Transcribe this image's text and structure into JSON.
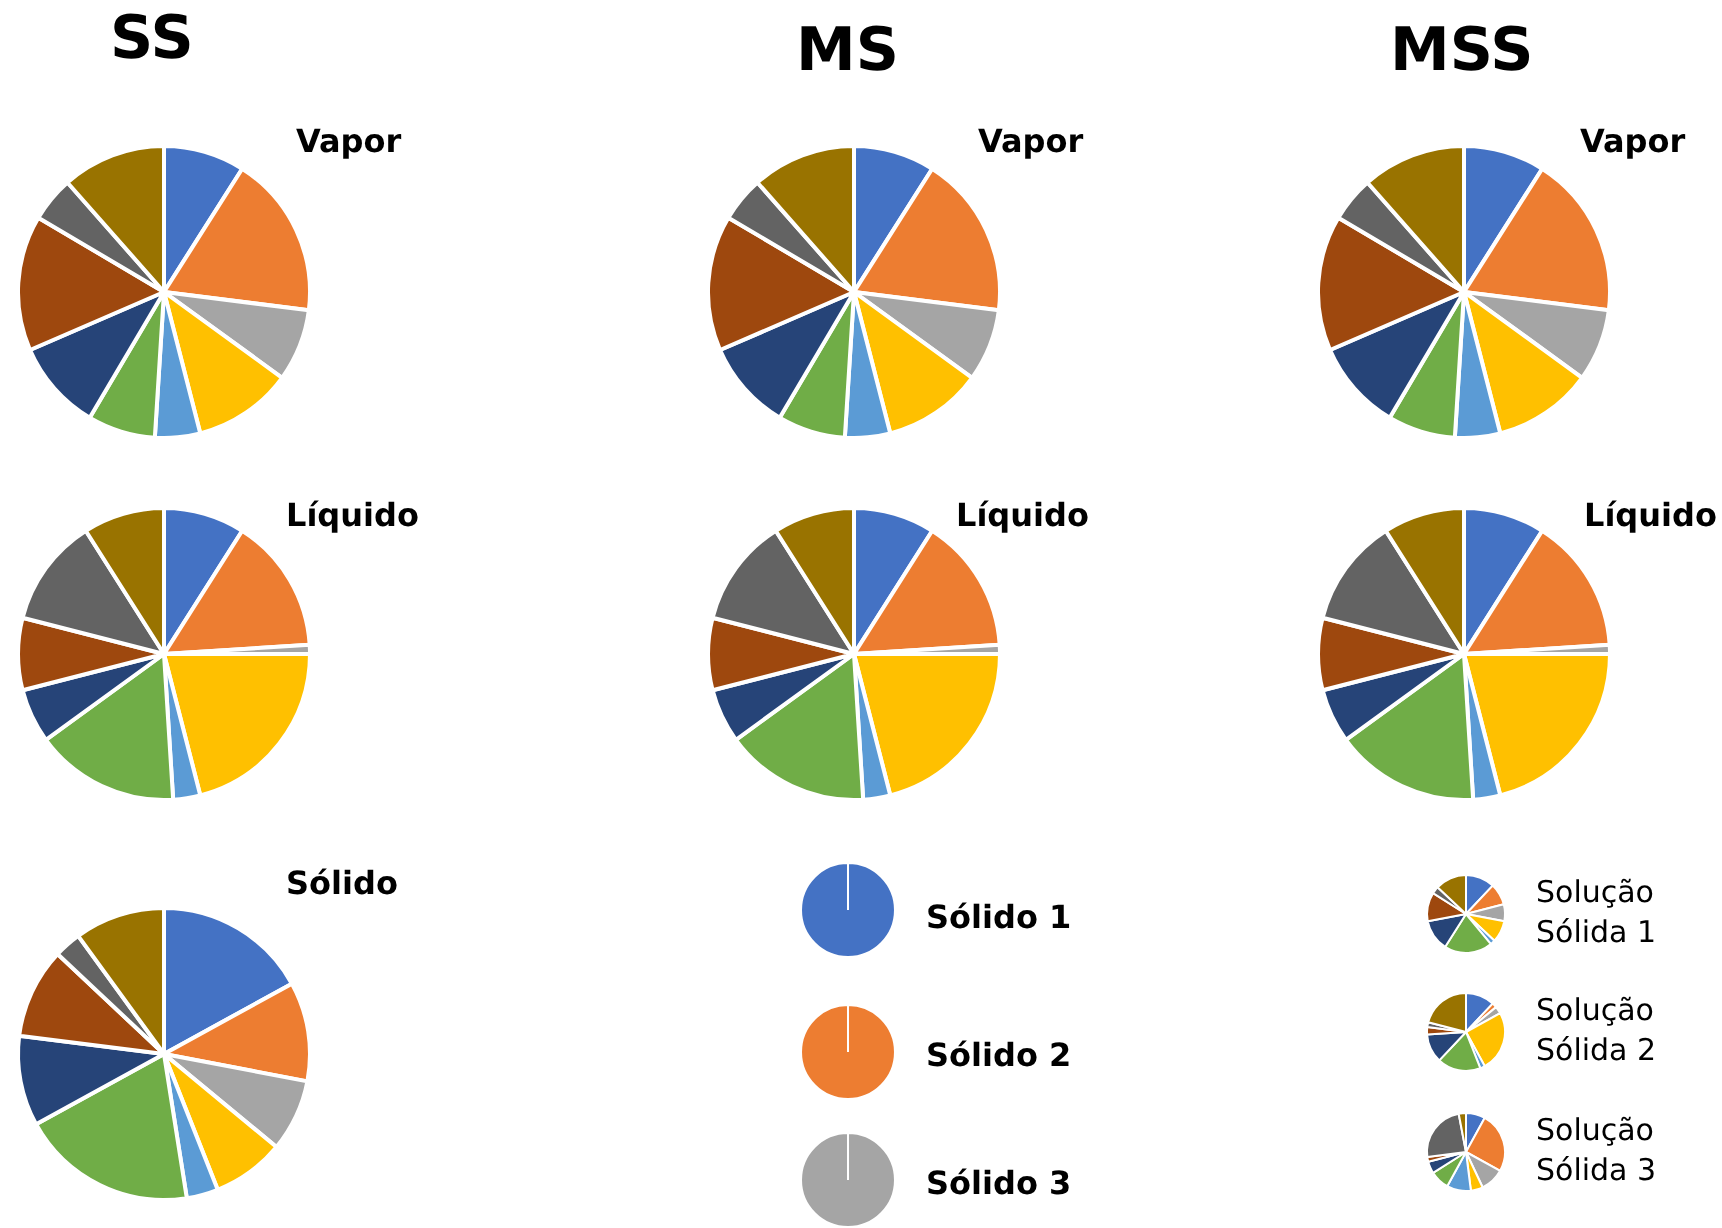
{
  "chart_data": [
    {
      "type": "pie",
      "title": "SS",
      "subtitle": "Vapor",
      "categories": [
        null,
        null,
        null,
        null,
        null,
        null,
        null,
        null,
        null,
        null
      ],
      "values": [
        9,
        18,
        8,
        11,
        5,
        7.5,
        10,
        15,
        5,
        11.5
      ],
      "colors": [
        "#4472c4",
        "#ed7d31",
        "#a5a5a5",
        "#ffc000",
        "#5b9bd5",
        "#70ad47",
        "#264478",
        "#9e480e",
        "#636363",
        "#997300"
      ]
    },
    {
      "type": "pie",
      "title": "MS",
      "subtitle": "Vapor",
      "categories": [
        null,
        null,
        null,
        null,
        null,
        null,
        null,
        null,
        null,
        null
      ],
      "values": [
        9,
        18,
        8,
        11,
        5,
        7.5,
        10,
        15,
        5,
        11.5
      ],
      "colors": [
        "#4472c4",
        "#ed7d31",
        "#a5a5a5",
        "#ffc000",
        "#5b9bd5",
        "#70ad47",
        "#264478",
        "#9e480e",
        "#636363",
        "#997300"
      ]
    },
    {
      "type": "pie",
      "title": "MSS",
      "subtitle": "Vapor",
      "categories": [
        null,
        null,
        null,
        null,
        null,
        null,
        null,
        null,
        null,
        null
      ],
      "values": [
        9,
        18,
        8,
        11,
        5,
        7.5,
        10,
        15,
        5,
        11.5
      ],
      "colors": [
        "#4472c4",
        "#ed7d31",
        "#a5a5a5",
        "#ffc000",
        "#5b9bd5",
        "#70ad47",
        "#264478",
        "#9e480e",
        "#636363",
        "#997300"
      ]
    },
    {
      "type": "pie",
      "title": "Líquido",
      "categories": [
        null,
        null,
        null,
        null,
        null,
        null,
        null,
        null,
        null,
        null
      ],
      "values": [
        9,
        15,
        1,
        21,
        3,
        16,
        6,
        8,
        12,
        9
      ],
      "colors": [
        "#4472c4",
        "#ed7d31",
        "#a5a5a5",
        "#ffc000",
        "#5b9bd5",
        "#70ad47",
        "#264478",
        "#9e480e",
        "#636363",
        "#997300"
      ]
    },
    {
      "type": "pie",
      "title": "Líquido",
      "categories": [
        null,
        null,
        null,
        null,
        null,
        null,
        null,
        null,
        null,
        null
      ],
      "values": [
        9,
        15,
        1,
        21,
        3,
        16,
        6,
        8,
        12,
        9
      ],
      "colors": [
        "#4472c4",
        "#ed7d31",
        "#a5a5a5",
        "#ffc000",
        "#5b9bd5",
        "#70ad47",
        "#264478",
        "#9e480e",
        "#636363",
        "#997300"
      ]
    },
    {
      "type": "pie",
      "title": "Líquido",
      "categories": [
        null,
        null,
        null,
        null,
        null,
        null,
        null,
        null,
        null,
        null
      ],
      "values": [
        9,
        15,
        1,
        21,
        3,
        16,
        6,
        8,
        12,
        9
      ],
      "colors": [
        "#4472c4",
        "#ed7d31",
        "#a5a5a5",
        "#ffc000",
        "#5b9bd5",
        "#70ad47",
        "#264478",
        "#9e480e",
        "#636363",
        "#997300"
      ]
    },
    {
      "type": "pie",
      "title": "Sólido",
      "categories": [
        null,
        null,
        null,
        null,
        null,
        null,
        null,
        null,
        null,
        null
      ],
      "values": [
        17,
        11,
        8,
        8,
        3.5,
        19.5,
        10,
        10,
        3,
        10
      ],
      "colors": [
        "#4472c4",
        "#ed7d31",
        "#a5a5a5",
        "#ffc000",
        "#5b9bd5",
        "#70ad47",
        "#264478",
        "#9e480e",
        "#636363",
        "#997300"
      ]
    },
    {
      "type": "pie",
      "title": "Sólido 1",
      "categories": [
        null
      ],
      "values": [
        100
      ],
      "colors": [
        "#4472c4"
      ]
    },
    {
      "type": "pie",
      "title": "Solução Sólida 1",
      "categories": [
        null,
        null,
        null,
        null,
        null,
        null,
        null,
        null,
        null,
        null
      ],
      "values": [
        12,
        9,
        7,
        9,
        2,
        20,
        13,
        12,
        3,
        13
      ],
      "colors": [
        "#4472c4",
        "#ed7d31",
        "#a5a5a5",
        "#ffc000",
        "#5b9bd5",
        "#70ad47",
        "#264478",
        "#9e480e",
        "#636363",
        "#997300"
      ]
    },
    {
      "type": "pie",
      "title": "Sólido 2",
      "categories": [
        null
      ],
      "values": [
        100
      ],
      "colors": [
        "#ed7d31"
      ]
    },
    {
      "type": "pie",
      "title": "Solução Sólida 2",
      "categories": [
        null,
        null,
        null,
        null,
        null,
        null,
        null,
        null,
        null,
        null
      ],
      "values": [
        12,
        2,
        3,
        25,
        2,
        18,
        12,
        3,
        2,
        21
      ],
      "colors": [
        "#4472c4",
        "#ed7d31",
        "#a5a5a5",
        "#ffc000",
        "#5b9bd5",
        "#70ad47",
        "#264478",
        "#9e480e",
        "#636363",
        "#997300"
      ]
    },
    {
      "type": "pie",
      "title": "Sólido 3",
      "categories": [
        null
      ],
      "values": [
        100
      ],
      "colors": [
        "#a5a5a5"
      ]
    },
    {
      "type": "pie",
      "title": "Solução Sólida 3",
      "categories": [
        null,
        null,
        null,
        null,
        null,
        null,
        null,
        null,
        null,
        null
      ],
      "values": [
        8,
        25,
        10,
        5,
        10,
        8,
        5,
        2,
        24,
        3
      ],
      "colors": [
        "#4472c4",
        "#ed7d31",
        "#a5a5a5",
        "#ffc000",
        "#5b9bd5",
        "#70ad47",
        "#264478",
        "#9e480e",
        "#636363",
        "#997300"
      ]
    }
  ]
}
